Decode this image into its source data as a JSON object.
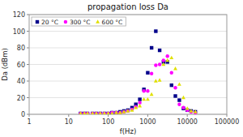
{
  "chart_data": {
    "type": "scatter",
    "title": "propagation loss Da",
    "x_label": "f(Hz)",
    "y_label": "Da (dBm)",
    "x": [
      20,
      25,
      30,
      40,
      50,
      63,
      80,
      100,
      125,
      160,
      200,
      250,
      315,
      400,
      500,
      630,
      800,
      1000,
      1250,
      1600,
      2000,
      2500,
      3150,
      4000,
      5000,
      6300,
      8000,
      10000,
      12500,
      16000
    ],
    "series": [
      {
        "name": "20 °C",
        "color": "#00008b",
        "marker": "square",
        "values": [
          1,
          1,
          1,
          1,
          1,
          1,
          1,
          1,
          2,
          2,
          3,
          4,
          5,
          8,
          12,
          18,
          30,
          50,
          80,
          100,
          77,
          63,
          63,
          35,
          22,
          17,
          7,
          5,
          4,
          3
        ]
      },
      {
        "name": "300 °C",
        "color": "#ff00ff",
        "marker": "circle",
        "values": [
          1,
          1,
          1,
          1,
          1,
          1,
          1,
          1,
          2,
          2,
          2,
          3,
          4,
          6,
          9,
          14,
          28,
          28,
          49,
          59,
          60,
          65,
          70,
          50,
          32,
          12,
          8,
          5,
          3,
          2
        ]
      },
      {
        "name": "600 °C",
        "color": "#e0e000",
        "marker": "triangle",
        "values": [
          1,
          1,
          1,
          1,
          1,
          1,
          1,
          1,
          1,
          2,
          2,
          3,
          4,
          5,
          8,
          10,
          18,
          18,
          24,
          40,
          41,
          60,
          65,
          68,
          55,
          36,
          20,
          7,
          4,
          3
        ]
      }
    ],
    "log": "x",
    "xlim": [
      1,
      100000
    ],
    "xticks": [
      1,
      10,
      100,
      1000,
      10000,
      100000
    ],
    "ylim": [
      0,
      120
    ],
    "yticks": [
      0,
      20,
      40,
      60,
      80,
      100,
      120
    ],
    "grid": true,
    "legend": "upper left"
  }
}
